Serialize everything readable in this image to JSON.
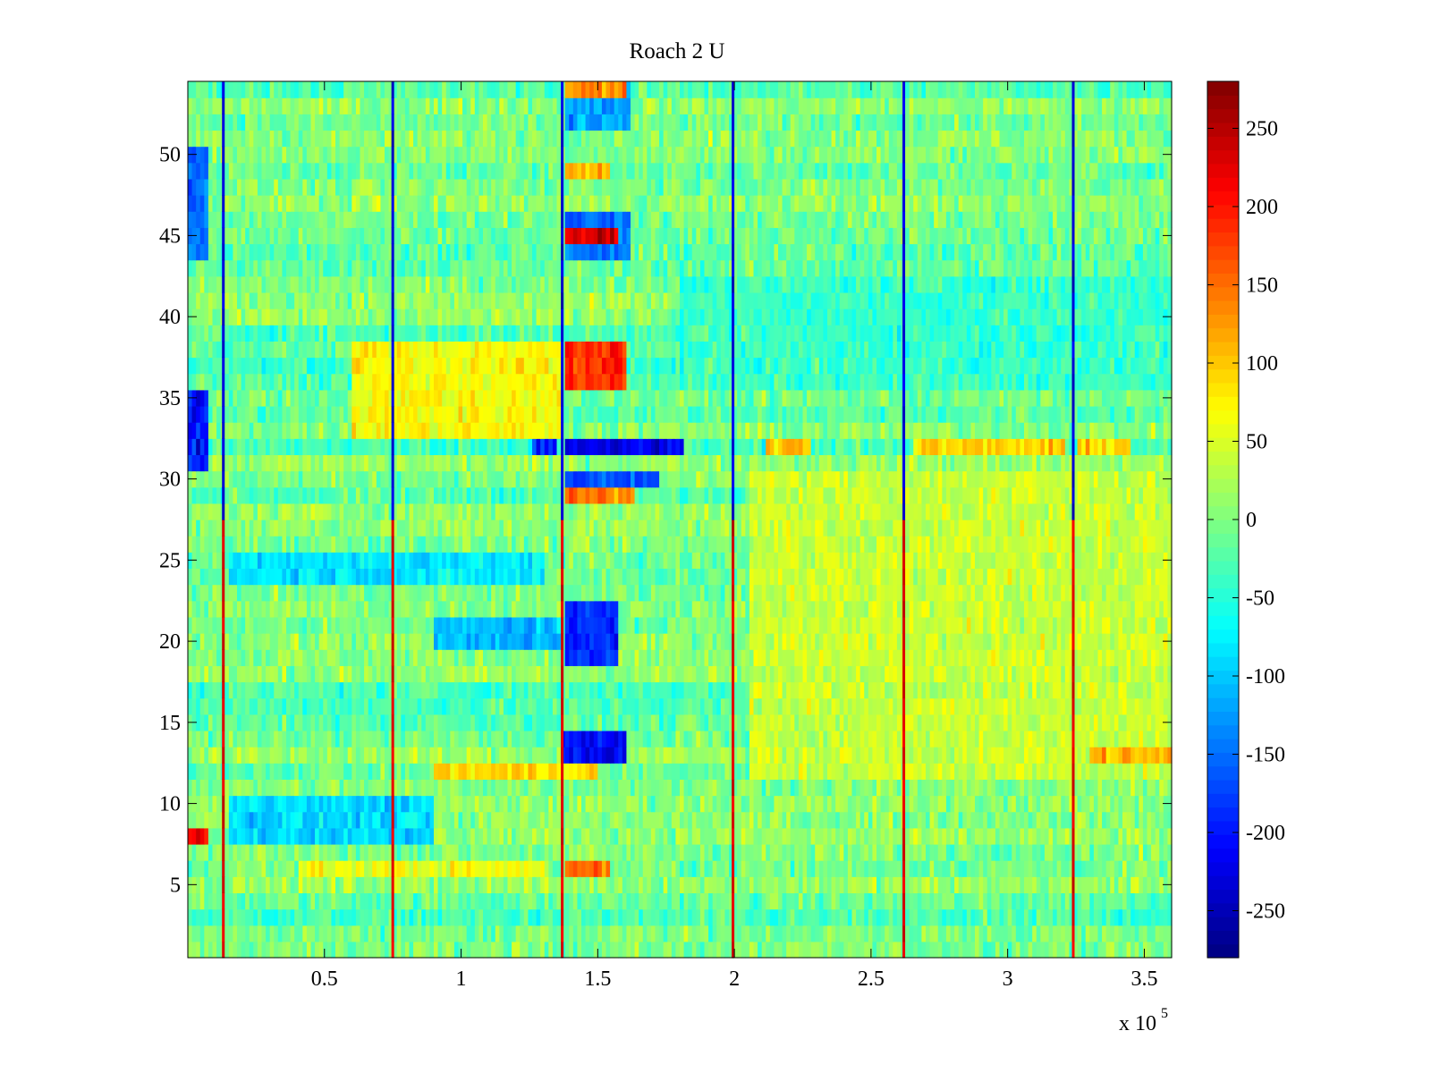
{
  "chart_data": {
    "type": "heatmap",
    "title": "Roach 2 U",
    "xlabel": "",
    "ylabel": "",
    "x_multiplier_label": {
      "prefix": "x 10",
      "exponent": "5"
    },
    "xlim": [
      0,
      360000
    ],
    "ylim": [
      0.5,
      54.5
    ],
    "rows": 54,
    "x_ticks": [
      {
        "value": 50000,
        "label": "0.5"
      },
      {
        "value": 100000,
        "label": "1"
      },
      {
        "value": 150000,
        "label": "1.5"
      },
      {
        "value": 200000,
        "label": "2"
      },
      {
        "value": 250000,
        "label": "2.5"
      },
      {
        "value": 300000,
        "label": "3"
      },
      {
        "value": 350000,
        "label": "3.5"
      }
    ],
    "y_ticks": [
      {
        "value": 5,
        "label": "5"
      },
      {
        "value": 10,
        "label": "10"
      },
      {
        "value": 15,
        "label": "15"
      },
      {
        "value": 20,
        "label": "20"
      },
      {
        "value": 25,
        "label": "25"
      },
      {
        "value": 30,
        "label": "30"
      },
      {
        "value": 35,
        "label": "35"
      },
      {
        "value": 40,
        "label": "40"
      },
      {
        "value": 45,
        "label": "45"
      },
      {
        "value": 50,
        "label": "50"
      }
    ],
    "colorbar": {
      "colormap": "jet",
      "clim": [
        -280,
        280
      ],
      "ticks": [
        {
          "value": 250,
          "label": "250"
        },
        {
          "value": 200,
          "label": "200"
        },
        {
          "value": 150,
          "label": "150"
        },
        {
          "value": 100,
          "label": "100"
        },
        {
          "value": 50,
          "label": "50"
        },
        {
          "value": 0,
          "label": "0"
        },
        {
          "value": -50,
          "label": "-50"
        },
        {
          "value": -100,
          "label": "-100"
        },
        {
          "value": -150,
          "label": "-150"
        },
        {
          "value": -200,
          "label": "-200"
        },
        {
          "value": -250,
          "label": "-250"
        }
      ]
    },
    "baseline_value": -10,
    "vertical_event_lines": [
      {
        "x": 13000
      },
      {
        "x": 75000
      },
      {
        "x": 137000
      },
      {
        "x": 199500
      },
      {
        "x": 262000
      },
      {
        "x": 324000
      }
    ],
    "highlight_regions": [
      {
        "rows": [
          32,
          32
        ],
        "x": [
          0,
          8000
        ],
        "value": -230
      },
      {
        "rows": [
          32,
          32
        ],
        "x": [
          138000,
          182000
        ],
        "value": -220
      },
      {
        "rows": [
          32,
          32
        ],
        "x": [
          126000,
          135000
        ],
        "value": -180
      },
      {
        "rows": [
          32,
          32
        ],
        "x": [
          212000,
          228000
        ],
        "value": 110
      },
      {
        "rows": [
          32,
          32
        ],
        "x": [
          265000,
          321000
        ],
        "value": 90
      },
      {
        "rows": [
          32,
          32
        ],
        "x": [
          326000,
          345000
        ],
        "value": 95
      },
      {
        "rows": [
          30,
          30
        ],
        "x": [
          138000,
          172000
        ],
        "value": -170
      },
      {
        "rows": [
          29,
          29
        ],
        "x": [
          138000,
          163000
        ],
        "value": 140
      },
      {
        "rows": [
          36,
          38
        ],
        "x": [
          138000,
          160000
        ],
        "value": 190
      },
      {
        "rows": [
          33,
          38
        ],
        "x": [
          60000,
          137000
        ],
        "value": 70
      },
      {
        "rows": [
          44,
          46
        ],
        "x": [
          138000,
          162000
        ],
        "value": -150
      },
      {
        "rows": [
          45,
          45
        ],
        "x": [
          138000,
          158000
        ],
        "value": 230
      },
      {
        "rows": [
          49,
          49
        ],
        "x": [
          138000,
          155000
        ],
        "value": 110
      },
      {
        "rows": [
          52,
          54
        ],
        "x": [
          138000,
          162000
        ],
        "value": -120
      },
      {
        "rows": [
          54,
          54
        ],
        "x": [
          138000,
          160000
        ],
        "value": 130
      },
      {
        "rows": [
          19,
          22
        ],
        "x": [
          138000,
          158000
        ],
        "value": -190
      },
      {
        "rows": [
          20,
          21
        ],
        "x": [
          90000,
          137000
        ],
        "value": -110
      },
      {
        "rows": [
          13,
          14
        ],
        "x": [
          136000,
          160000
        ],
        "value": -210
      },
      {
        "rows": [
          12,
          12
        ],
        "x": [
          90000,
          150000
        ],
        "value": 90
      },
      {
        "rows": [
          6,
          6
        ],
        "x": [
          138000,
          155000
        ],
        "value": 150
      },
      {
        "rows": [
          6,
          6
        ],
        "x": [
          40000,
          130000
        ],
        "value": 60
      },
      {
        "rows": [
          8,
          10
        ],
        "x": [
          15000,
          90000
        ],
        "value": -90
      },
      {
        "rows": [
          24,
          25
        ],
        "x": [
          15000,
          130000
        ],
        "value": -80
      },
      {
        "rows": [
          12,
          30
        ],
        "x": [
          205000,
          360000
        ],
        "value": 40
      },
      {
        "rows": [
          13,
          13
        ],
        "x": [
          330000,
          360000
        ],
        "value": 110
      },
      {
        "rows": [
          31,
          35
        ],
        "x": [
          0,
          8000
        ],
        "value": -200
      },
      {
        "rows": [
          44,
          50
        ],
        "x": [
          0,
          8000
        ],
        "value": -150
      },
      {
        "rows": [
          8,
          8
        ],
        "x": [
          0,
          8000
        ],
        "value": 220
      },
      {
        "rows": [
          36,
          42
        ],
        "x": [
          180000,
          360000
        ],
        "value": -40
      }
    ]
  }
}
